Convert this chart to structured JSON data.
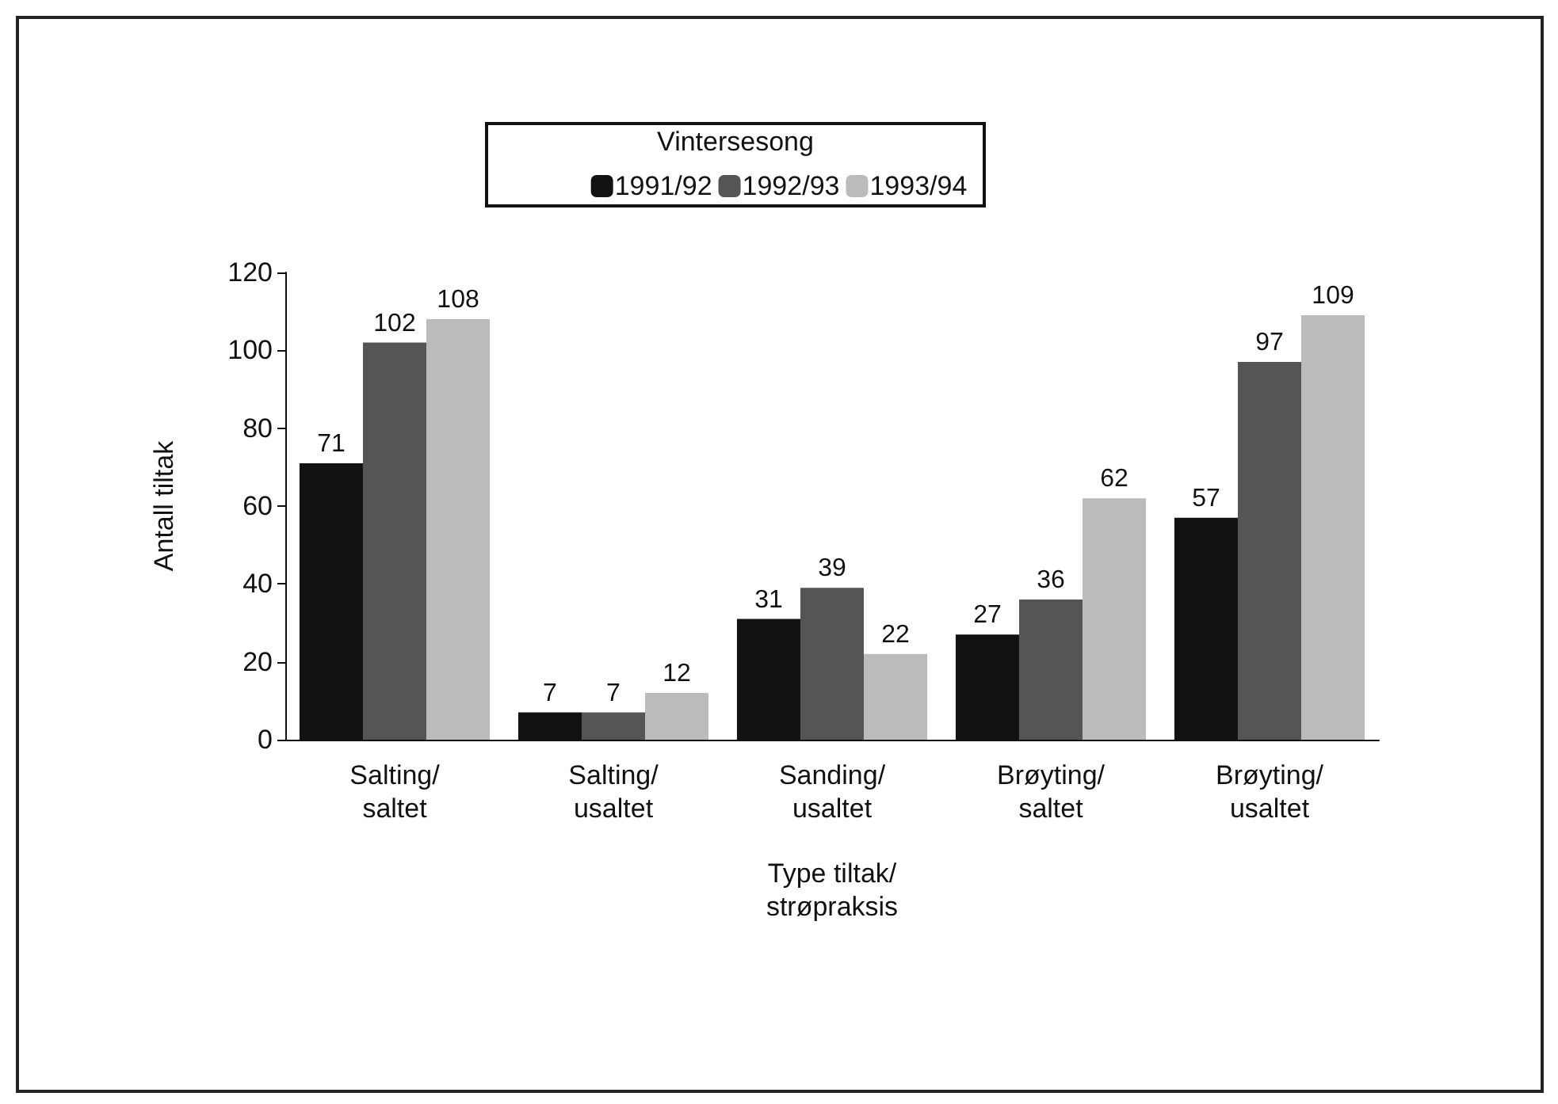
{
  "chart_data": {
    "type": "bar",
    "xlabel": "Type tiltak/ strøpraksis",
    "ylabel": "Antall tiltak",
    "legend_title": "Vintersesong",
    "categories": [
      "Salting/ saltet",
      "Salting/ usaltet",
      "Sanding/ usaltet",
      "Brøyting/ saltet",
      "Brøyting/ usaltet"
    ],
    "series": [
      {
        "name": "1991/92",
        "color": "#111111",
        "values": [
          71,
          7,
          31,
          27,
          57
        ]
      },
      {
        "name": "1992/93",
        "color": "#555555",
        "values": [
          102,
          7,
          39,
          36,
          97
        ]
      },
      {
        "name": "1993/94",
        "color": "#bbbbbb",
        "values": [
          108,
          12,
          22,
          62,
          109
        ]
      }
    ],
    "ylim": [
      0,
      120
    ],
    "yticks": [
      0,
      20,
      40,
      60,
      80,
      100,
      120
    ],
    "grid": false,
    "legend": "top",
    "data_labels": true
  }
}
